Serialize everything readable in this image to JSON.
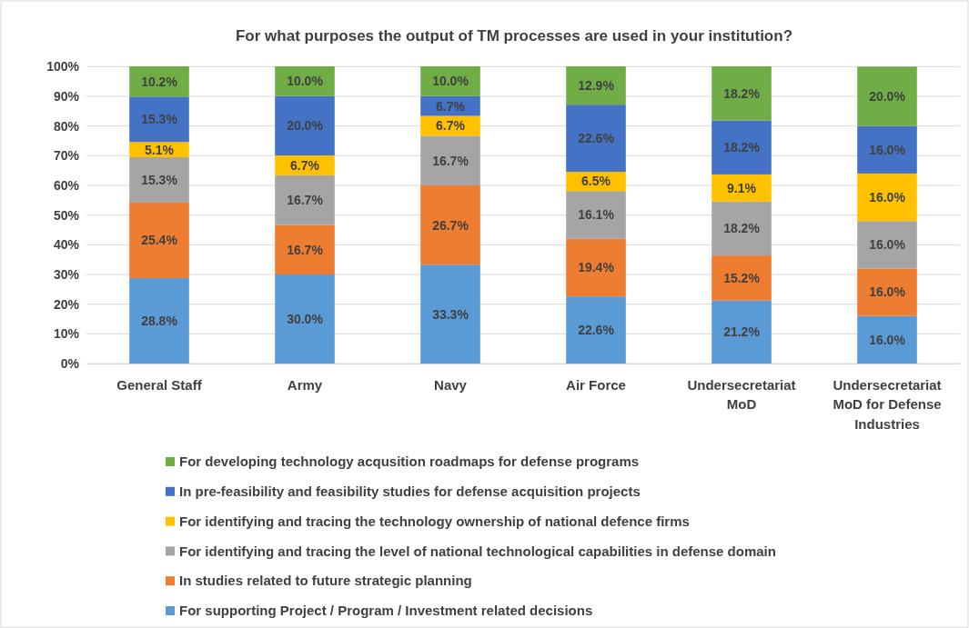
{
  "chart_data": {
    "type": "bar",
    "stacked": true,
    "title": "For what purposes the output of TM processes are used in your institution?",
    "categories": [
      "General Staff",
      "Army",
      "Navy",
      "Air Force",
      "Undersecretariat MoD",
      "Undersecretariat MoD for Defense Industries"
    ],
    "ylim": [
      0,
      100.1
    ],
    "yticks": [
      {
        "value": 0,
        "label": "0%"
      },
      {
        "value": 10,
        "label": "10%"
      },
      {
        "value": 20,
        "label": "20%"
      },
      {
        "value": 30,
        "label": "30%"
      },
      {
        "value": 40,
        "label": "40%"
      },
      {
        "value": 50,
        "label": "50%"
      },
      {
        "value": 60,
        "label": "60%"
      },
      {
        "value": 70,
        "label": "70%"
      },
      {
        "value": 80,
        "label": "80%"
      },
      {
        "value": 90,
        "label": "90%"
      },
      {
        "value": 100,
        "label": "100%"
      }
    ],
    "grid": "y",
    "legend": "bottom",
    "series": [
      {
        "name": "For supporting Project / Program / Investment related decisions",
        "color": "#5b9bd5",
        "values": [
          28.8,
          30.0,
          33.3,
          22.6,
          21.2,
          16.0
        ],
        "value_labels": [
          "28.8%",
          "30.0%",
          "33.3%",
          "22.6%",
          "21.2%",
          "16.0%"
        ]
      },
      {
        "name": "In studies related to future strategic planning",
        "color": "#ed7d31",
        "values": [
          25.4,
          16.7,
          26.7,
          19.4,
          15.2,
          16.0
        ],
        "value_labels": [
          "25.4%",
          "16.7%",
          "26.7%",
          "19.4%",
          "15.2%",
          "16.0%"
        ]
      },
      {
        "name": "For identifying and tracing the level of national technological capabilities in defense domain",
        "color": "#a5a5a5",
        "values": [
          15.3,
          16.7,
          16.7,
          16.1,
          18.2,
          16.0
        ],
        "value_labels": [
          "15.3%",
          "16.7%",
          "16.7%",
          "16.1%",
          "18.2%",
          "16.0%"
        ]
      },
      {
        "name": "For identifying and tracing the technology ownership of national defence firms",
        "color": "#ffc000",
        "values": [
          5.1,
          6.7,
          6.7,
          6.5,
          9.1,
          16.0
        ],
        "value_labels": [
          "5.1%",
          "6.7%",
          "6.7%",
          "6.5%",
          "9.1%",
          "16.0%"
        ]
      },
      {
        "name": "In pre-feasibility and feasibility studies for defense acquisition projects",
        "color": "#4472c4",
        "values": [
          15.3,
          20.0,
          6.7,
          22.6,
          18.2,
          16.0
        ],
        "value_labels": [
          "15.3%",
          "20.0%",
          "6.7%",
          "22.6%",
          "18.2%",
          "16.0%"
        ]
      },
      {
        "name": "For developing technology acqusition roadmaps for defense programs",
        "color": "#70ad47",
        "values": [
          10.2,
          10.0,
          10.0,
          12.9,
          18.2,
          20.0
        ],
        "value_labels": [
          "10.2%",
          "10.0%",
          "10.0%",
          "12.9%",
          "18.2%",
          "20.0%"
        ]
      }
    ]
  }
}
